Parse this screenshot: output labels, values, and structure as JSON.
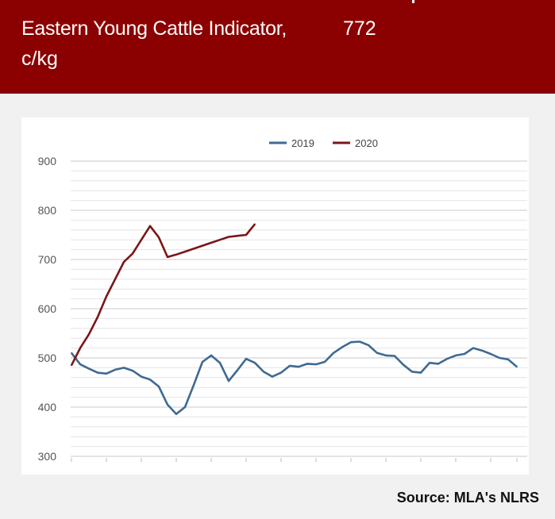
{
  "header": {
    "title_line1": "Eastern Young Cattle Indicator,",
    "value": "772",
    "title_line2": "c/kg"
  },
  "source": "Source: MLA's NLRS",
  "colors": {
    "header_bg": "#8b0000",
    "series_2019": "#3f6a91",
    "series_2020": "#7b1616"
  },
  "chart_data": {
    "type": "line",
    "ylim": [
      300,
      900
    ],
    "yticks": [
      "300",
      "400",
      "500",
      "600",
      "700",
      "800",
      "900"
    ],
    "x_count": 52,
    "legend_position": "top-center",
    "grid": true,
    "series": [
      {
        "name": "2019",
        "color": "#3f6a91",
        "values": [
          510,
          487,
          478,
          470,
          468,
          476,
          480,
          474,
          462,
          456,
          442,
          405,
          386,
          400,
          445,
          492,
          505,
          490,
          453,
          475,
          498,
          490,
          472,
          462,
          470,
          484,
          482,
          488,
          487,
          492,
          510,
          522,
          532,
          533,
          526,
          510,
          505,
          504,
          486,
          472,
          470,
          490,
          488,
          498,
          505,
          508,
          520,
          515,
          508,
          500,
          497,
          482
        ]
      },
      {
        "name": "2020",
        "color": "#7b1616",
        "values": [
          485,
          520,
          548,
          583,
          625,
          660,
          695,
          712,
          740,
          768,
          745,
          705,
          710,
          716,
          722,
          728,
          734,
          740,
          746,
          748,
          750,
          772
        ]
      }
    ]
  }
}
